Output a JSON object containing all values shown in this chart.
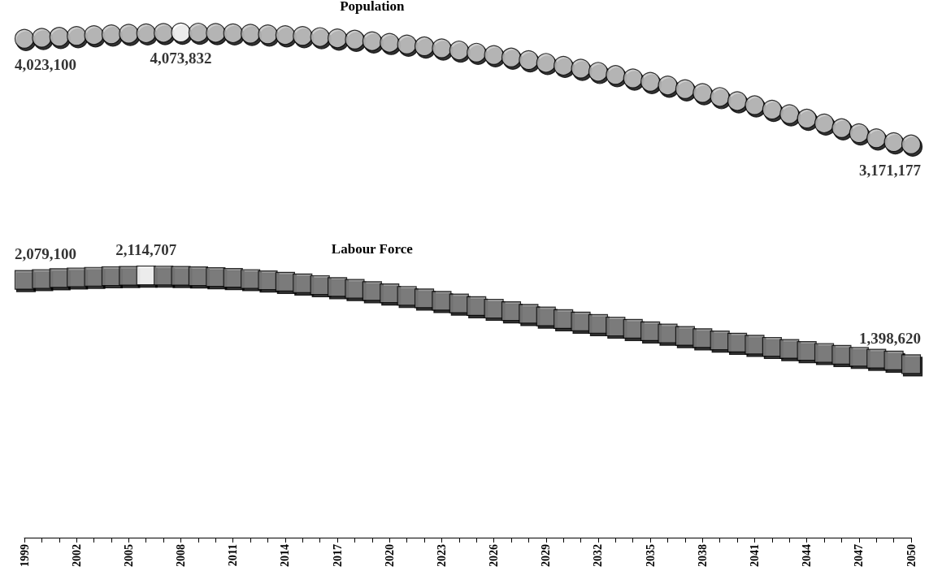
{
  "chart_data": {
    "type": "scatter",
    "categories": [
      "1999",
      null,
      null,
      "2002",
      null,
      null,
      "2005",
      null,
      null,
      "2008",
      null,
      null,
      "2011",
      null,
      null,
      "2014",
      null,
      null,
      "2017",
      null,
      null,
      "2020",
      null,
      null,
      "2023",
      null,
      null,
      "2026",
      null,
      null,
      "2029",
      null,
      null,
      "2032",
      null,
      null,
      "2035",
      null,
      null,
      "2038",
      null,
      null,
      "2041",
      null,
      null,
      "2044",
      null,
      null,
      "2047",
      null,
      null,
      "2050"
    ],
    "series": [
      {
        "name": "Population",
        "marker": "circle",
        "colors": [
          "#c0c0c0",
          "#c0c0c0",
          "#c0c0c0",
          "#c0c0c0",
          "#c0c0c0",
          "#c0c0c0",
          "#c0c0c0",
          "#c0c0c0",
          "#c0c0c0",
          "#ffffff",
          "#c0c0c0",
          "#c0c0c0",
          "#c0c0c0",
          "#c0c0c0",
          "#c0c0c0",
          "#c0c0c0",
          "#c0c0c0",
          "#c0c0c0",
          "#c0c0c0",
          "#c0c0c0",
          "#c0c0c0",
          "#c0c0c0",
          "#c0c0c0",
          "#c0c0c0",
          "#c0c0c0",
          "#c0c0c0",
          "#c0c0c0",
          "#c0c0c0",
          "#c0c0c0",
          "#c0c0c0",
          "#c0c0c0",
          "#c0c0c0",
          "#c0c0c0",
          "#c0c0c0",
          "#c0c0c0",
          "#c0c0c0",
          "#c0c0c0",
          "#c0c0c0",
          "#c0c0c0",
          "#c0c0c0",
          "#c0c0c0",
          "#c0c0c0",
          "#c0c0c0",
          "#c0c0c0",
          "#c0c0c0",
          "#c0c0c0",
          "#c0c0c0",
          "#c0c0c0",
          "#c0c0c0",
          "#c0c0c0",
          "#c0c0c0",
          "#c0c0c0"
        ],
        "values": [
          4023100,
          4031000,
          4039000,
          4046000,
          4053000,
          4059000,
          4064000,
          4068000,
          4071000,
          4073832,
          4073000,
          4071000,
          4068000,
          4064000,
          4059000,
          4053000,
          4046000,
          4037000,
          4027000,
          4016000,
          4004000,
          3991000,
          3977000,
          3962000,
          3946000,
          3929000,
          3911000,
          3892000,
          3872000,
          3851000,
          3829000,
          3806000,
          3782000,
          3757000,
          3731000,
          3704000,
          3676000,
          3647000,
          3617000,
          3586000,
          3554000,
          3521000,
          3487000,
          3452000,
          3416000,
          3379000,
          3341000,
          3302000,
          3262000,
          3221000,
          3190000,
          3171177
        ],
        "value_labels": [
          "4,023,100",
          null,
          null,
          null,
          null,
          null,
          null,
          null,
          null,
          "4,073,832",
          null,
          null,
          null,
          null,
          null,
          null,
          null,
          null,
          null,
          null,
          null,
          null,
          null,
          null,
          null,
          null,
          null,
          null,
          null,
          null,
          null,
          null,
          null,
          null,
          null,
          null,
          null,
          null,
          null,
          null,
          null,
          null,
          null,
          null,
          null,
          null,
          null,
          null,
          null,
          null,
          null,
          "3,171,177"
        ]
      },
      {
        "name": "Labour Force",
        "marker": "square",
        "colors": [
          "#808080",
          "#808080",
          "#808080",
          "#808080",
          "#808080",
          "#808080",
          "#808080",
          "#ffffff",
          "#808080",
          "#808080",
          "#808080",
          "#808080",
          "#808080",
          "#808080",
          "#808080",
          "#808080",
          "#808080",
          "#808080",
          "#808080",
          "#808080",
          "#808080",
          "#808080",
          "#808080",
          "#808080",
          "#808080",
          "#808080",
          "#808080",
          "#808080",
          "#808080",
          "#808080",
          "#808080",
          "#808080",
          "#808080",
          "#808080",
          "#808080",
          "#808080",
          "#808080",
          "#808080",
          "#808080",
          "#808080",
          "#808080",
          "#808080",
          "#808080",
          "#808080",
          "#808080",
          "#808080",
          "#808080",
          "#808080",
          "#808080",
          "#808080",
          "#808080",
          "#808080"
        ],
        "values": [
          2079100,
          2086000,
          2093000,
          2099000,
          2104000,
          2109000,
          2112000,
          2114707,
          2114000,
          2112000,
          2108000,
          2102000,
          2095000,
          2086000,
          2076000,
          2064000,
          2051000,
          2037000,
          2022000,
          2006000,
          1989000,
          1970000,
          1950000,
          1930000,
          1910000,
          1889000,
          1868000,
          1847000,
          1826000,
          1805000,
          1784000,
          1763000,
          1743000,
          1723000,
          1703000,
          1684000,
          1665000,
          1646000,
          1627000,
          1609000,
          1591000,
          1573000,
          1556000,
          1539000,
          1522000,
          1506000,
          1490000,
          1474000,
          1459000,
          1444000,
          1428000,
          1398620
        ],
        "value_labels": [
          "2,079,100",
          null,
          null,
          null,
          null,
          null,
          null,
          "2,114,707",
          null,
          null,
          null,
          null,
          null,
          null,
          null,
          null,
          null,
          null,
          null,
          null,
          null,
          null,
          null,
          null,
          null,
          null,
          null,
          null,
          null,
          null,
          null,
          null,
          null,
          null,
          null,
          null,
          null,
          null,
          null,
          null,
          null,
          null,
          null,
          null,
          null,
          null,
          null,
          null,
          null,
          null,
          null,
          "1,398,620"
        ]
      }
    ],
    "grid": false,
    "legend": false
  }
}
